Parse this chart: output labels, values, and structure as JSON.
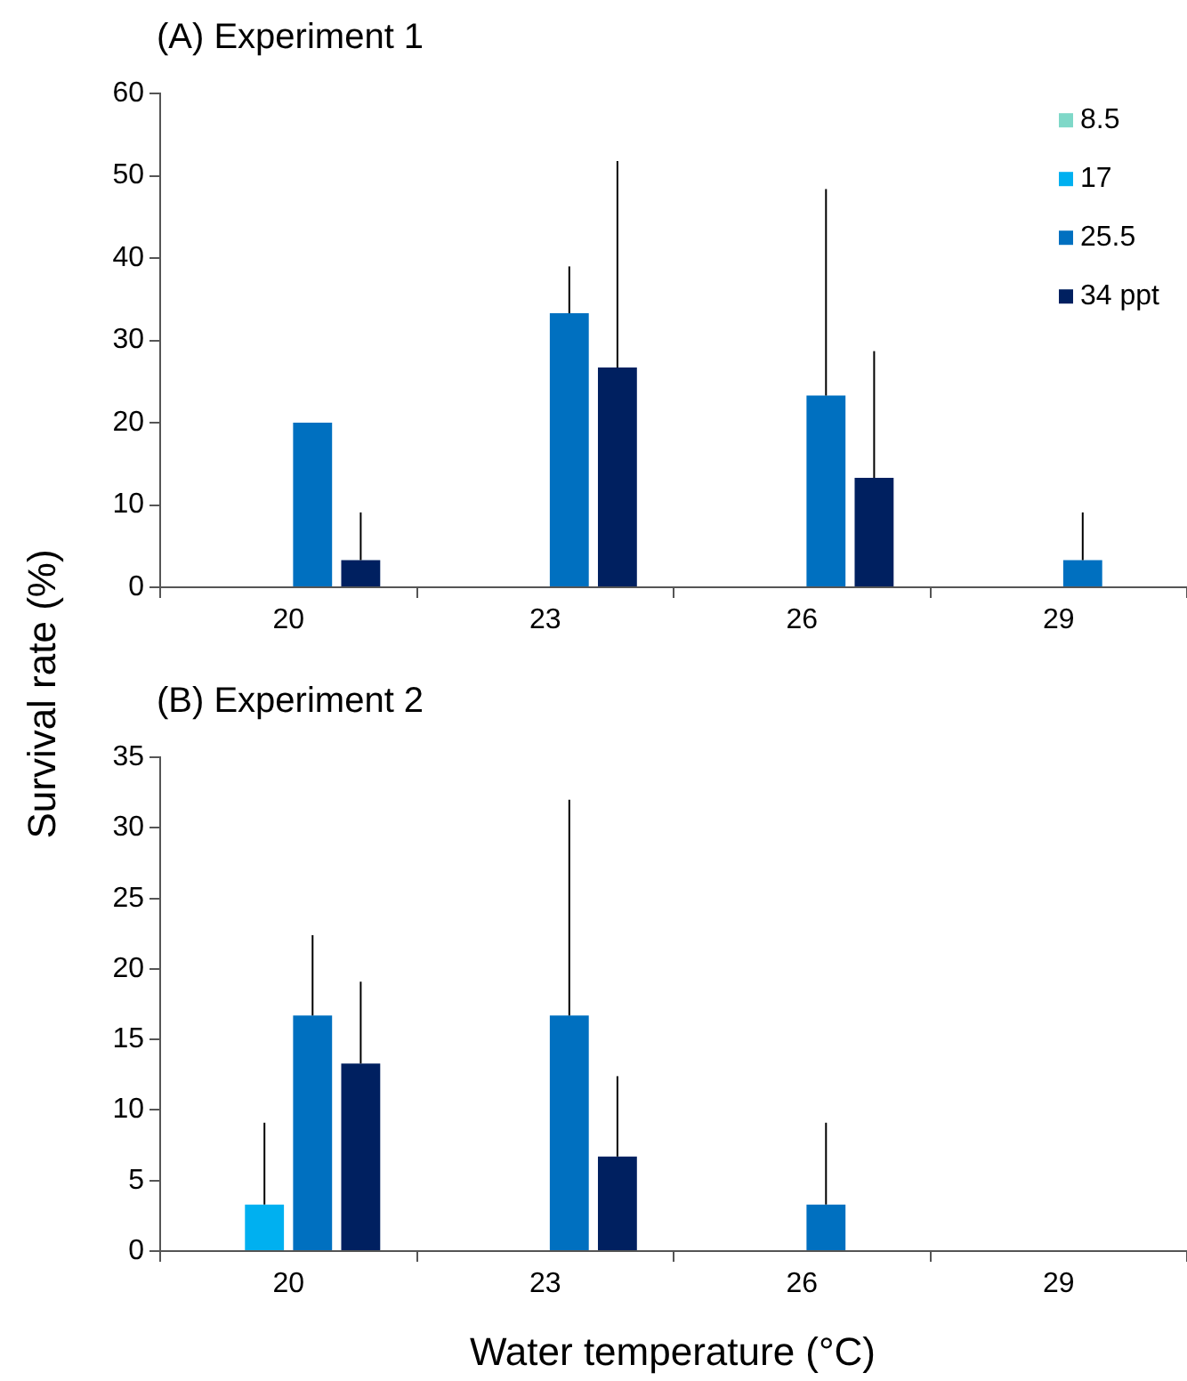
{
  "chart_data": [
    {
      "type": "bar",
      "title": "(A) Experiment 1",
      "ylabel": "Survival rate (%)",
      "categories": [
        "20",
        "23",
        "26",
        "29"
      ],
      "series": [
        {
          "name": "8.5",
          "color": "#7fd8c8",
          "values": [
            0,
            0,
            0,
            0
          ]
        },
        {
          "name": "17",
          "color": "#00b0f0",
          "values": [
            0,
            0,
            0,
            0
          ]
        },
        {
          "name": "25.5",
          "color": "#0070c0",
          "values": [
            20,
            33.3,
            23.3,
            3.3
          ],
          "errors": [
            null,
            [
              33.3,
              39
            ],
            [
              23.3,
              48.4
            ],
            [
              3.3,
              9.1
            ]
          ]
        },
        {
          "name": "34 ppt",
          "color": "#002060",
          "values": [
            3.3,
            26.7,
            13.3,
            0
          ],
          "errors": [
            [
              3.3,
              9.1
            ],
            [
              26.7,
              51.8
            ],
            [
              13.3,
              28.7
            ],
            null
          ]
        }
      ],
      "ylim": [
        0,
        60
      ],
      "yticks": [
        0,
        10,
        20,
        30,
        40,
        50,
        60
      ],
      "grid": false,
      "legend": "top right"
    },
    {
      "type": "bar",
      "title": "(B) Experiment 2",
      "xlabel": "Water temperature (°C)",
      "categories": [
        "20",
        "23",
        "26",
        "29"
      ],
      "series": [
        {
          "color": "#7fd8c8",
          "values": [
            0,
            0,
            0,
            0
          ]
        },
        {
          "color": "#00b0f0",
          "values": [
            3.3,
            0,
            0,
            0
          ],
          "errors": [
            [
              3.3,
              9.1
            ],
            null,
            null,
            null
          ]
        },
        {
          "color": "#0070c0",
          "values": [
            16.7,
            16.7,
            3.3,
            0
          ],
          "errors": [
            [
              16.7,
              22.4
            ],
            [
              16.7,
              32
            ],
            [
              3.3,
              9.1
            ],
            null
          ]
        },
        {
          "color": "#002060",
          "values": [
            13.3,
            6.7,
            0,
            0
          ],
          "errors": [
            [
              13.3,
              19.1
            ],
            [
              6.7,
              12.4
            ],
            null,
            null
          ]
        }
      ],
      "ylim": [
        0,
        35
      ],
      "yticks": [
        0,
        5,
        10,
        15,
        20,
        25,
        30,
        35
      ],
      "grid": false
    }
  ]
}
